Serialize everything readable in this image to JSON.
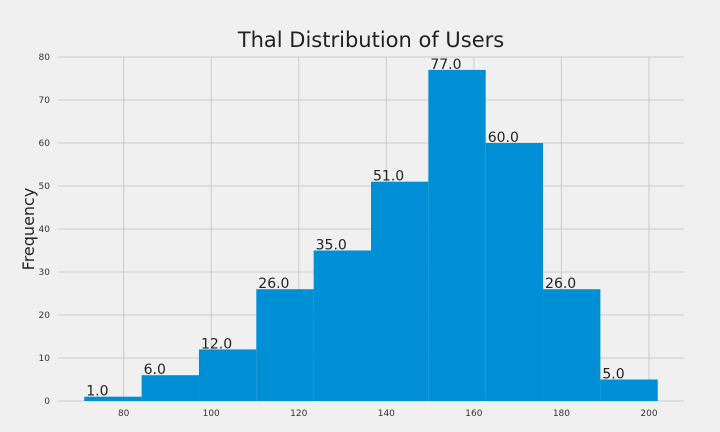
{
  "colors": {
    "background": "#f0f0f0",
    "bar": "#008fd5",
    "grid": "#cbcbcb"
  },
  "chart_data": {
    "type": "bar",
    "title": "Thal Distribution of Users",
    "xlabel": "",
    "ylabel": "Frequency",
    "bin_edges": [
      71,
      84.1,
      97.2,
      110.3,
      123.4,
      136.5,
      149.6,
      162.7,
      175.8,
      188.9,
      202
    ],
    "values": [
      1,
      6,
      12,
      26,
      35,
      51,
      77,
      60,
      26,
      5
    ],
    "data_labels": [
      "1.0",
      "6.0",
      "12.0",
      "26.0",
      "35.0",
      "51.0",
      "77.0",
      "60.0",
      "26.0",
      "5.0"
    ],
    "xlim": [
      65,
      208
    ],
    "ylim": [
      0,
      80
    ],
    "x_ticks": [
      80,
      100,
      120,
      140,
      160,
      180,
      200
    ],
    "y_ticks": [
      0,
      10,
      20,
      30,
      40,
      50,
      60,
      70,
      80
    ],
    "grid": true
  }
}
